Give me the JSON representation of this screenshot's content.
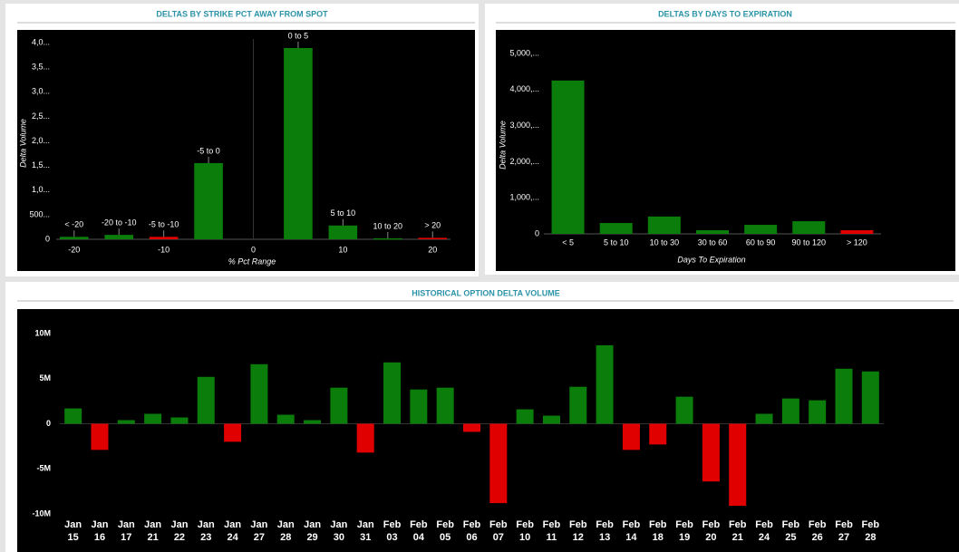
{
  "chart_data": [
    {
      "type": "bar",
      "title": "DELTAS BY STRIKE PCT AWAY FROM SPOT",
      "ylabel": "Delta Volume",
      "xlabel": "% Pct Range",
      "x": [
        -20,
        -15,
        -10,
        -5,
        5,
        10,
        15,
        20
      ],
      "labels": [
        "< -20",
        "-20 to -10",
        "-5 to -10",
        "-5 to 0",
        "0 to 5",
        "5 to 10",
        "10 to 20",
        "> 20"
      ],
      "values": [
        50,
        90,
        50,
        1550,
        3890,
        280,
        20,
        30
      ],
      "colors": [
        "#0a7d0a",
        "#0a7d0a",
        "#e00000",
        "#0a7d0a",
        "#0a7d0a",
        "#0a7d0a",
        "#0a7d0a",
        "#e00000"
      ],
      "xlim": [
        -22,
        22
      ],
      "xticks": [
        -20,
        -10,
        0,
        10,
        20
      ],
      "ylim": [
        0,
        4000
      ],
      "yticks": [
        0,
        {
          "value": 500,
          "label": "500..."
        },
        {
          "value": 1000,
          "label": "1,0..."
        },
        {
          "value": 1500,
          "label": "1,5..."
        },
        {
          "value": 2000,
          "label": "2,0..."
        },
        {
          "value": 2500,
          "label": "2,5..."
        },
        {
          "value": 3000,
          "label": "3,0..."
        },
        {
          "value": 3500,
          "label": "3,5..."
        },
        {
          "value": 4000,
          "label": "4,0..."
        }
      ]
    },
    {
      "type": "bar",
      "title": "DELTAS BY DAYS TO EXPIRATION",
      "ylabel": "Delta Volume",
      "xlabel": "Days To Expiration",
      "categories": [
        "< 5",
        "5 to 10",
        "10 to 30",
        "30 to 60",
        "60 to 90",
        "90 to 120",
        "> 120"
      ],
      "values": [
        4250,
        300,
        480,
        100,
        250,
        350,
        100
      ],
      "colors": [
        "#0a7d0a",
        "#0a7d0a",
        "#0a7d0a",
        "#0a7d0a",
        "#0a7d0a",
        "#0a7d0a",
        "#e00000"
      ],
      "ylim": [
        0,
        5000
      ],
      "yticks": [
        0,
        {
          "value": 1000,
          "label": "1,000,..."
        },
        {
          "value": 2000,
          "label": "2,000,..."
        },
        {
          "value": 3000,
          "label": "3,000,..."
        },
        {
          "value": 4000,
          "label": "4,000,..."
        },
        {
          "value": 5000,
          "label": "5,000,..."
        }
      ]
    },
    {
      "type": "bar",
      "title": "HISTORICAL OPTION DELTA VOLUME",
      "categories": [
        "Jan 15",
        "Jan 16",
        "Jan 17",
        "Jan 21",
        "Jan 22",
        "Jan 23",
        "Jan 24",
        "Jan 27",
        "Jan 28",
        "Jan 29",
        "Jan 30",
        "Jan 31",
        "Feb 03",
        "Feb 04",
        "Feb 05",
        "Feb 06",
        "Feb 07",
        "Feb 10",
        "Feb 11",
        "Feb 12",
        "Feb 13",
        "Feb 14",
        "Feb 18",
        "Feb 19",
        "Feb 20",
        "Feb 21",
        "Feb 24",
        "Feb 25",
        "Feb 26",
        "Feb 27",
        "Feb 28"
      ],
      "values": [
        1700000,
        -2900000,
        400000,
        1100000,
        700000,
        5200000,
        -2000000,
        6600000,
        1000000,
        400000,
        4000000,
        -3200000,
        6800000,
        3800000,
        4000000,
        -900000,
        -8800000,
        1600000,
        900000,
        4100000,
        8700000,
        -2900000,
        -2300000,
        3000000,
        -6400000,
        -9100000,
        1100000,
        2800000,
        2600000,
        6100000,
        5800000
      ],
      "positive_color": "#0a7d0a",
      "negative_color": "#e00000",
      "ylim": [
        -10000000,
        10000000
      ],
      "yticks": [
        {
          "value": -10000000,
          "label": "-10M"
        },
        {
          "value": -5000000,
          "label": "-5M"
        },
        0,
        {
          "value": 5000000,
          "label": "5M"
        },
        {
          "value": 10000000,
          "label": "10M"
        }
      ]
    }
  ]
}
